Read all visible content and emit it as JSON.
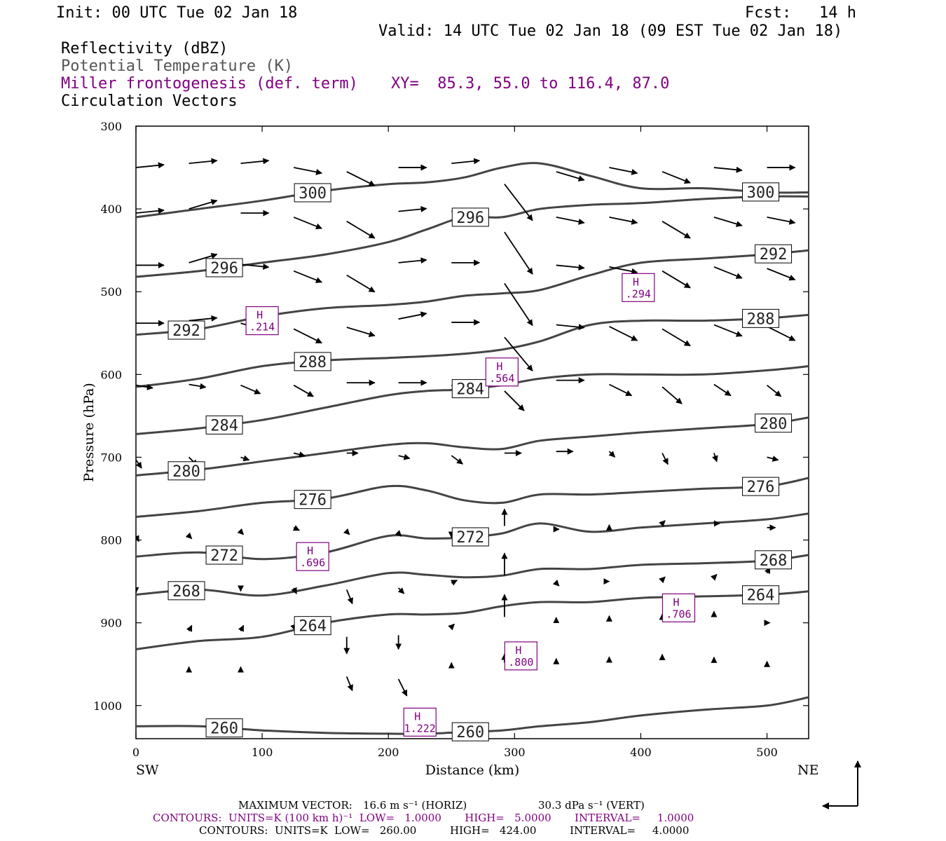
{
  "header": {
    "init": "Init: 00 UTC Tue 02 Jan 18",
    "fcst": "Fcst:   14 h",
    "valid": "Valid: 14 UTC Tue 02 Jan 18 (09 EST Tue 02 Jan 18)",
    "fields": [
      {
        "text": "Reflectivity (dBZ)",
        "color": "#000000"
      },
      {
        "text": "Potential Temperature (K)",
        "color": "#555555"
      },
      {
        "text": "Miller frontogenesis (def. term)",
        "color": "#800080"
      },
      {
        "text": "Circulation Vectors",
        "color": "#000000"
      }
    ],
    "xy": "XY=  85.3, 55.0 to 116.4, 87.0"
  },
  "chart_data": {
    "type": "line",
    "xlabel": "Distance (km)",
    "ylabel": "Pressure (hPa)",
    "xlim": [
      0,
      533
    ],
    "ylim": [
      1040,
      300
    ],
    "x_ticks": [
      "0",
      "100",
      "200",
      "300",
      "400",
      "500"
    ],
    "x_tick_values": [
      0,
      100,
      200,
      300,
      400,
      500
    ],
    "y_ticks": [
      "300",
      "400",
      "500",
      "600",
      "700",
      "800",
      "900",
      "1000"
    ],
    "y_tick_values": [
      300,
      400,
      500,
      600,
      700,
      800,
      900,
      1000
    ],
    "end_labels": {
      "left": "SW",
      "right": "NE"
    },
    "theta_color": "#444444",
    "frontogenesis_color": "#800080",
    "isentropes": [
      {
        "label": "300",
        "x": [
          0,
          50,
          100,
          150,
          200,
          230,
          260,
          290,
          320,
          360,
          400,
          450,
          500,
          533
        ],
        "p": [
          410,
          400,
          390,
          378,
          370,
          368,
          362,
          350,
          345,
          360,
          375,
          375,
          380,
          380
        ]
      },
      {
        "label": "296",
        "x": [
          0,
          50,
          100,
          150,
          200,
          230,
          260,
          290,
          320,
          360,
          400,
          450,
          500,
          533
        ],
        "p": [
          482,
          475,
          465,
          455,
          440,
          425,
          410,
          410,
          400,
          395,
          393,
          388,
          385,
          385
        ]
      },
      {
        "label": "292",
        "x": [
          0,
          50,
          100,
          150,
          200,
          230,
          260,
          290,
          320,
          360,
          400,
          450,
          500,
          533
        ],
        "p": [
          552,
          545,
          530,
          520,
          516,
          512,
          505,
          502,
          498,
          480,
          465,
          460,
          455,
          450
        ]
      },
      {
        "label": "288",
        "x": [
          0,
          50,
          100,
          150,
          200,
          230,
          260,
          290,
          320,
          360,
          400,
          450,
          500,
          533
        ],
        "p": [
          615,
          605,
          590,
          583,
          580,
          578,
          575,
          570,
          560,
          540,
          535,
          535,
          532,
          528
        ]
      },
      {
        "label": "284",
        "x": [
          0,
          50,
          100,
          150,
          200,
          230,
          260,
          290,
          320,
          360,
          400,
          450,
          500,
          533
        ],
        "p": [
          672,
          665,
          655,
          640,
          625,
          620,
          618,
          613,
          605,
          600,
          600,
          600,
          595,
          590
        ]
      },
      {
        "label": "280",
        "x": [
          0,
          50,
          100,
          150,
          200,
          230,
          260,
          290,
          320,
          360,
          400,
          450,
          500,
          533
        ],
        "p": [
          722,
          715,
          705,
          695,
          685,
          683,
          688,
          690,
          680,
          675,
          670,
          665,
          660,
          652
        ]
      },
      {
        "label": "276",
        "x": [
          0,
          50,
          100,
          150,
          200,
          230,
          260,
          290,
          320,
          360,
          400,
          450,
          500,
          533
        ],
        "p": [
          772,
          765,
          755,
          750,
          735,
          740,
          752,
          755,
          745,
          745,
          742,
          738,
          735,
          725
        ]
      },
      {
        "label": "272",
        "x": [
          0,
          50,
          100,
          150,
          200,
          230,
          260,
          290,
          320,
          360,
          400,
          450,
          500,
          533
        ],
        "p": [
          820,
          815,
          823,
          815,
          795,
          798,
          797,
          792,
          780,
          790,
          785,
          780,
          775,
          768
        ]
      },
      {
        "label": "268",
        "x": [
          0,
          50,
          100,
          150,
          200,
          230,
          260,
          290,
          320,
          360,
          400,
          450,
          500,
          533
        ],
        "p": [
          866,
          860,
          867,
          855,
          840,
          842,
          845,
          843,
          835,
          835,
          830,
          828,
          825,
          818
        ]
      },
      {
        "label": "264",
        "x": [
          0,
          50,
          100,
          150,
          200,
          230,
          260,
          290,
          320,
          360,
          400,
          450,
          500,
          533
        ],
        "p": [
          932,
          922,
          917,
          900,
          890,
          890,
          888,
          880,
          875,
          875,
          870,
          868,
          866,
          862
        ]
      },
      {
        "label": "260",
        "x": [
          0,
          50,
          100,
          150,
          200,
          230,
          260,
          290,
          320,
          360,
          400,
          450,
          500,
          533
        ],
        "p": [
          1025,
          1025,
          1030,
          1033,
          1034,
          1034,
          1032,
          1030,
          1025,
          1020,
          1012,
          1005,
          1000,
          990
        ]
      }
    ],
    "frontogenesis_maxima": [
      {
        "tag": "H",
        "value": ".214",
        "x": 100,
        "p": 535
      },
      {
        "tag": "H",
        "value": ".294",
        "x": 398,
        "p": 495
      },
      {
        "tag": "H",
        "value": ".564",
        "x": 290,
        "p": 597
      },
      {
        "tag": "H",
        "value": ".696",
        "x": 140,
        "p": 820
      },
      {
        "tag": "H",
        "value": ".706",
        "x": 430,
        "p": 882
      },
      {
        "tag": "H",
        "value": ".800",
        "x": 305,
        "p": 940
      },
      {
        "tag": "H",
        "value": "1.222",
        "x": 225,
        "p": 1020
      }
    ],
    "vectors": [
      {
        "x": 0,
        "p": 350,
        "u": 1.0,
        "w": 0.1
      },
      {
        "x": 42,
        "p": 345,
        "u": 1.0,
        "w": 0.1
      },
      {
        "x": 83,
        "p": 345,
        "u": 1.0,
        "w": 0.1
      },
      {
        "x": 125,
        "p": 350,
        "u": 1.0,
        "w": -0.2
      },
      {
        "x": 167,
        "p": 355,
        "u": 1.0,
        "w": -0.5
      },
      {
        "x": 208,
        "p": 350,
        "u": 1.0,
        "w": 0
      },
      {
        "x": 250,
        "p": 345,
        "u": 1.0,
        "w": 0.1
      },
      {
        "x": 292,
        "p": 370,
        "u": 1.0,
        "w": -1.3
      },
      {
        "x": 333,
        "p": 355,
        "u": 1.0,
        "w": -0.3
      },
      {
        "x": 375,
        "p": 350,
        "u": 1.0,
        "w": -0.2
      },
      {
        "x": 417,
        "p": 355,
        "u": 1.0,
        "w": -0.4
      },
      {
        "x": 458,
        "p": 350,
        "u": 1.0,
        "w": -0.1
      },
      {
        "x": 500,
        "p": 350,
        "u": 1.0,
        "w": 0
      },
      {
        "x": 0,
        "p": 405,
        "u": 1.0,
        "w": 0.1
      },
      {
        "x": 42,
        "p": 400,
        "u": 1.0,
        "w": 0.3
      },
      {
        "x": 83,
        "p": 405,
        "u": 1.0,
        "w": 0
      },
      {
        "x": 125,
        "p": 410,
        "u": 1.0,
        "w": -0.4
      },
      {
        "x": 167,
        "p": 415,
        "u": 1.0,
        "w": -0.6
      },
      {
        "x": 208,
        "p": 403,
        "u": 1.0,
        "w": 0.1
      },
      {
        "x": 250,
        "p": 403,
        "u": 1.0,
        "w": 0
      },
      {
        "x": 292,
        "p": 428,
        "u": 1.0,
        "w": -1.5
      },
      {
        "x": 333,
        "p": 410,
        "u": 1.0,
        "w": -0.2
      },
      {
        "x": 375,
        "p": 410,
        "u": 1.0,
        "w": -0.2
      },
      {
        "x": 417,
        "p": 415,
        "u": 1.0,
        "w": -0.6
      },
      {
        "x": 458,
        "p": 410,
        "u": 1.0,
        "w": -0.3
      },
      {
        "x": 500,
        "p": 410,
        "u": 1.0,
        "w": -0.2
      },
      {
        "x": 0,
        "p": 468,
        "u": 1.0,
        "w": 0
      },
      {
        "x": 42,
        "p": 465,
        "u": 1.0,
        "w": 0.3
      },
      {
        "x": 83,
        "p": 467,
        "u": 1.0,
        "w": -0.1
      },
      {
        "x": 125,
        "p": 475,
        "u": 1.0,
        "w": -0.4
      },
      {
        "x": 167,
        "p": 480,
        "u": 1.0,
        "w": -0.6
      },
      {
        "x": 208,
        "p": 465,
        "u": 1.0,
        "w": 0.1
      },
      {
        "x": 250,
        "p": 465,
        "u": 1.0,
        "w": 0
      },
      {
        "x": 292,
        "p": 490,
        "u": 1.0,
        "w": -1.5
      },
      {
        "x": 333,
        "p": 468,
        "u": 1.0,
        "w": -0.1
      },
      {
        "x": 375,
        "p": 470,
        "u": 1.0,
        "w": -0.2
      },
      {
        "x": 417,
        "p": 475,
        "u": 1.0,
        "w": -0.6
      },
      {
        "x": 458,
        "p": 470,
        "u": 1.0,
        "w": -0.4
      },
      {
        "x": 500,
        "p": 472,
        "u": 1.0,
        "w": -0.4
      },
      {
        "x": 0,
        "p": 538,
        "u": 1.0,
        "w": 0
      },
      {
        "x": 42,
        "p": 535,
        "u": 1.0,
        "w": 0.1
      },
      {
        "x": 83,
        "p": 538,
        "u": 1.0,
        "w": -0.3
      },
      {
        "x": 125,
        "p": 545,
        "u": 1.0,
        "w": -0.5
      },
      {
        "x": 167,
        "p": 543,
        "u": 1.0,
        "w": -0.3
      },
      {
        "x": 208,
        "p": 533,
        "u": 1.0,
        "w": 0.2
      },
      {
        "x": 250,
        "p": 537,
        "u": 1.0,
        "w": 0
      },
      {
        "x": 292,
        "p": 555,
        "u": 1.0,
        "w": -1.2
      },
      {
        "x": 333,
        "p": 540,
        "u": 1.0,
        "w": -0.1
      },
      {
        "x": 375,
        "p": 542,
        "u": 1.0,
        "w": -0.5
      },
      {
        "x": 417,
        "p": 545,
        "u": 1.0,
        "w": -0.6
      },
      {
        "x": 458,
        "p": 540,
        "u": 1.0,
        "w": -0.4
      },
      {
        "x": 500,
        "p": 542,
        "u": 1.0,
        "w": -0.5
      },
      {
        "x": 0,
        "p": 613,
        "u": 0.6,
        "w": -0.1
      },
      {
        "x": 42,
        "p": 612,
        "u": 0.6,
        "w": -0.1
      },
      {
        "x": 83,
        "p": 613,
        "u": 0.7,
        "w": -0.3
      },
      {
        "x": 125,
        "p": 613,
        "u": 0.7,
        "w": -0.4
      },
      {
        "x": 167,
        "p": 610,
        "u": 1.0,
        "w": 0
      },
      {
        "x": 208,
        "p": 610,
        "u": 1.0,
        "w": 0
      },
      {
        "x": 250,
        "p": 613,
        "u": 0.7,
        "w": -0.3
      },
      {
        "x": 292,
        "p": 620,
        "u": 0.7,
        "w": -0.7
      },
      {
        "x": 333,
        "p": 607,
        "u": 1.0,
        "w": 0
      },
      {
        "x": 375,
        "p": 612,
        "u": 0.8,
        "w": -0.4
      },
      {
        "x": 417,
        "p": 615,
        "u": 0.7,
        "w": -0.6
      },
      {
        "x": 458,
        "p": 612,
        "u": 0.6,
        "w": -0.4
      },
      {
        "x": 500,
        "p": 613,
        "u": 0.5,
        "w": -0.4
      },
      {
        "x": 0,
        "p": 703,
        "u": 0.2,
        "w": -0.3
      },
      {
        "x": 42,
        "p": 700,
        "u": 0.3,
        "w": -0.3
      },
      {
        "x": 83,
        "p": 700,
        "u": 0.3,
        "w": -0.1
      },
      {
        "x": 125,
        "p": 695,
        "u": 0.4,
        "w": -0.1
      },
      {
        "x": 167,
        "p": 695,
        "u": 0.4,
        "w": 0
      },
      {
        "x": 208,
        "p": 698,
        "u": 0.4,
        "w": -0.1
      },
      {
        "x": 250,
        "p": 698,
        "u": 0.4,
        "w": -0.3
      },
      {
        "x": 292,
        "p": 695,
        "u": 0.6,
        "w": 0
      },
      {
        "x": 333,
        "p": 693,
        "u": 0.6,
        "w": 0
      },
      {
        "x": 375,
        "p": 693,
        "u": 0.2,
        "w": -0.2
      },
      {
        "x": 417,
        "p": 695,
        "u": 0.2,
        "w": -0.4
      },
      {
        "x": 458,
        "p": 695,
        "u": 0.1,
        "w": -0.3
      },
      {
        "x": 500,
        "p": 700,
        "u": 0.4,
        "w": -0.1
      },
      {
        "x": 0,
        "p": 795,
        "u": 0.1,
        "w": -0.2
      },
      {
        "x": 42,
        "p": 795,
        "u": 0.1,
        "w": -0.1
      },
      {
        "x": 83,
        "p": 790,
        "u": 0.1,
        "w": -0.1
      },
      {
        "x": 125,
        "p": 785,
        "u": 0.2,
        "w": -0.1
      },
      {
        "x": 167,
        "p": 790,
        "u": 0.1,
        "w": -0.1
      },
      {
        "x": 208,
        "p": 792,
        "u": 0.1,
        "w": -0.1
      },
      {
        "x": 250,
        "p": 790,
        "u": 0,
        "w": -0.2
      },
      {
        "x": 292,
        "p": 783,
        "u": 0,
        "w": 0.6
      },
      {
        "x": 333,
        "p": 787,
        "u": 0.1,
        "w": 0
      },
      {
        "x": 375,
        "p": 785,
        "u": 0,
        "w": 0.1
      },
      {
        "x": 417,
        "p": 780,
        "u": 0.1,
        "w": 0.1
      },
      {
        "x": 458,
        "p": 780,
        "u": 0.2,
        "w": 0
      },
      {
        "x": 500,
        "p": 785,
        "u": 0.3,
        "w": 0
      },
      {
        "x": 0,
        "p": 857,
        "u": 0,
        "w": -0.2
      },
      {
        "x": 42,
        "p": 858,
        "u": 0.1,
        "w": -0.2
      },
      {
        "x": 83,
        "p": 855,
        "u": 0,
        "w": -0.2
      },
      {
        "x": 125,
        "p": 858,
        "u": 0.1,
        "w": -0.2
      },
      {
        "x": 167,
        "p": 860,
        "u": 0.2,
        "w": -0.5
      },
      {
        "x": 208,
        "p": 858,
        "u": 0.2,
        "w": -0.2
      },
      {
        "x": 250,
        "p": 852,
        "u": 0.2,
        "w": 0.1
      },
      {
        "x": 292,
        "p": 843,
        "u": 0,
        "w": 0.8
      },
      {
        "x": 333,
        "p": 852,
        "u": 0.1,
        "w": -0.1
      },
      {
        "x": 375,
        "p": 850,
        "u": 0,
        "w": 0
      },
      {
        "x": 417,
        "p": 848,
        "u": 0.1,
        "w": 0.1
      },
      {
        "x": 458,
        "p": 845,
        "u": 0.1,
        "w": 0.1
      },
      {
        "x": 500,
        "p": 840,
        "u": 0.1,
        "w": 0.2
      },
      {
        "x": 42,
        "p": 910,
        "u": 0.1,
        "w": 0.2
      },
      {
        "x": 83,
        "p": 910,
        "u": 0.1,
        "w": 0.2
      },
      {
        "x": 125,
        "p": 905,
        "u": 0.1,
        "w": 0.1
      },
      {
        "x": 167,
        "p": 917,
        "u": 0,
        "w": -0.6
      },
      {
        "x": 208,
        "p": 915,
        "u": 0,
        "w": -0.5
      },
      {
        "x": 250,
        "p": 905,
        "u": 0.1,
        "w": 0.1
      },
      {
        "x": 292,
        "p": 893,
        "u": 0,
        "w": 0.8
      },
      {
        "x": 333,
        "p": 897,
        "u": 0,
        "w": 0.1
      },
      {
        "x": 375,
        "p": 895,
        "u": 0,
        "w": 0.1
      },
      {
        "x": 417,
        "p": 893,
        "u": 0,
        "w": 0.1
      },
      {
        "x": 458,
        "p": 893,
        "u": 0,
        "w": 0.2
      },
      {
        "x": 500,
        "p": 900,
        "u": 0.1,
        "w": 0
      },
      {
        "x": 42,
        "p": 960,
        "u": 0,
        "w": 0.2
      },
      {
        "x": 83,
        "p": 960,
        "u": 0,
        "w": 0.2
      },
      {
        "x": 167,
        "p": 965,
        "u": 0.2,
        "w": -0.5
      },
      {
        "x": 208,
        "p": 968,
        "u": 0.3,
        "w": -0.6
      },
      {
        "x": 250,
        "p": 955,
        "u": 0,
        "w": 0.2
      },
      {
        "x": 292,
        "p": 948,
        "u": 0,
        "w": 0.3
      },
      {
        "x": 333,
        "p": 950,
        "u": 0,
        "w": 0.2
      },
      {
        "x": 375,
        "p": 948,
        "u": 0,
        "w": 0.2
      },
      {
        "x": 417,
        "p": 945,
        "u": 0,
        "w": 0.2
      },
      {
        "x": 458,
        "p": 945,
        "u": 0,
        "w": 0.1
      },
      {
        "x": 500,
        "p": 950,
        "u": 0,
        "w": 0.1
      }
    ]
  },
  "footer": {
    "max_vector_label": "MAXIMUM VECTOR:",
    "max_vector_horiz": "16.6 m s⁻¹ (HORIZ)",
    "max_vector_vert": "30.3 dPa s⁻¹ (VERT)",
    "contours_purple": "CONTOURS:  UNITS=K (100 km h)⁻¹  LOW=   1.0000       HIGH=   5.0000       INTERVAL=     1.0000",
    "contours_black": "CONTOURS:  UNITS=K  LOW=   260.00          HIGH=   424.00          INTERVAL=     4.0000"
  }
}
